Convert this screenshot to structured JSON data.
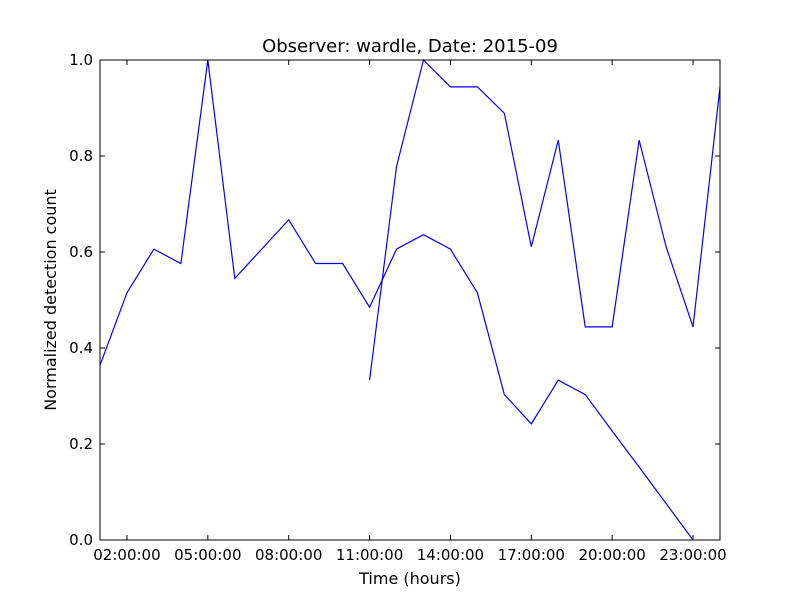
{
  "chart_data": {
    "type": "line",
    "title": "Observer: wardle, Date: 2015-09",
    "xlabel": "Time (hours)",
    "ylabel": "Normalized detection count",
    "xlim": [
      "01:00:00",
      "24:00:00"
    ],
    "ylim": [
      0.0,
      1.0
    ],
    "x_ticks": [
      "02:00:00",
      "05:00:00",
      "08:00:00",
      "11:00:00",
      "14:00:00",
      "17:00:00",
      "20:00:00",
      "23:00:00"
    ],
    "y_ticks": [
      "0.0",
      "0.2",
      "0.4",
      "0.6",
      "0.8",
      "1.0"
    ],
    "grid": false,
    "line_color": "#0000ff",
    "series": [
      {
        "x": [
          "01:00:00",
          "02:00:00",
          "03:00:00",
          "04:00:00",
          "05:00:00",
          "06:00:00",
          "07:00:00",
          "08:00:00",
          "09:00:00",
          "10:00:00",
          "11:00:00",
          "12:00:00",
          "13:00:00",
          "14:00:00",
          "15:00:00",
          "16:00:00",
          "17:00:00",
          "18:00:00",
          "19:00:00",
          "20:00:00",
          "21:00:00",
          "22:00:00",
          "23:00:00"
        ],
        "values": [
          0.364,
          0.515,
          0.606,
          0.576,
          1.0,
          0.545,
          0.606,
          0.667,
          0.576,
          0.576,
          0.485,
          0.606,
          0.636,
          0.606,
          0.515,
          0.303,
          0.242,
          0.333,
          0.303,
          0.227,
          0.152,
          0.076,
          0.0
        ]
      },
      {
        "x": [
          "11:00:00",
          "12:00:00",
          "13:00:00",
          "14:00:00",
          "15:00:00",
          "16:00:00",
          "17:00:00",
          "18:00:00",
          "19:00:00",
          "20:00:00",
          "21:00:00",
          "22:00:00",
          "23:00:00",
          "24:00:00"
        ],
        "values": [
          0.333,
          0.778,
          1.0,
          0.944,
          0.944,
          0.889,
          0.611,
          0.833,
          0.444,
          0.444,
          0.833,
          0.611,
          0.444,
          0.944
        ]
      }
    ]
  }
}
